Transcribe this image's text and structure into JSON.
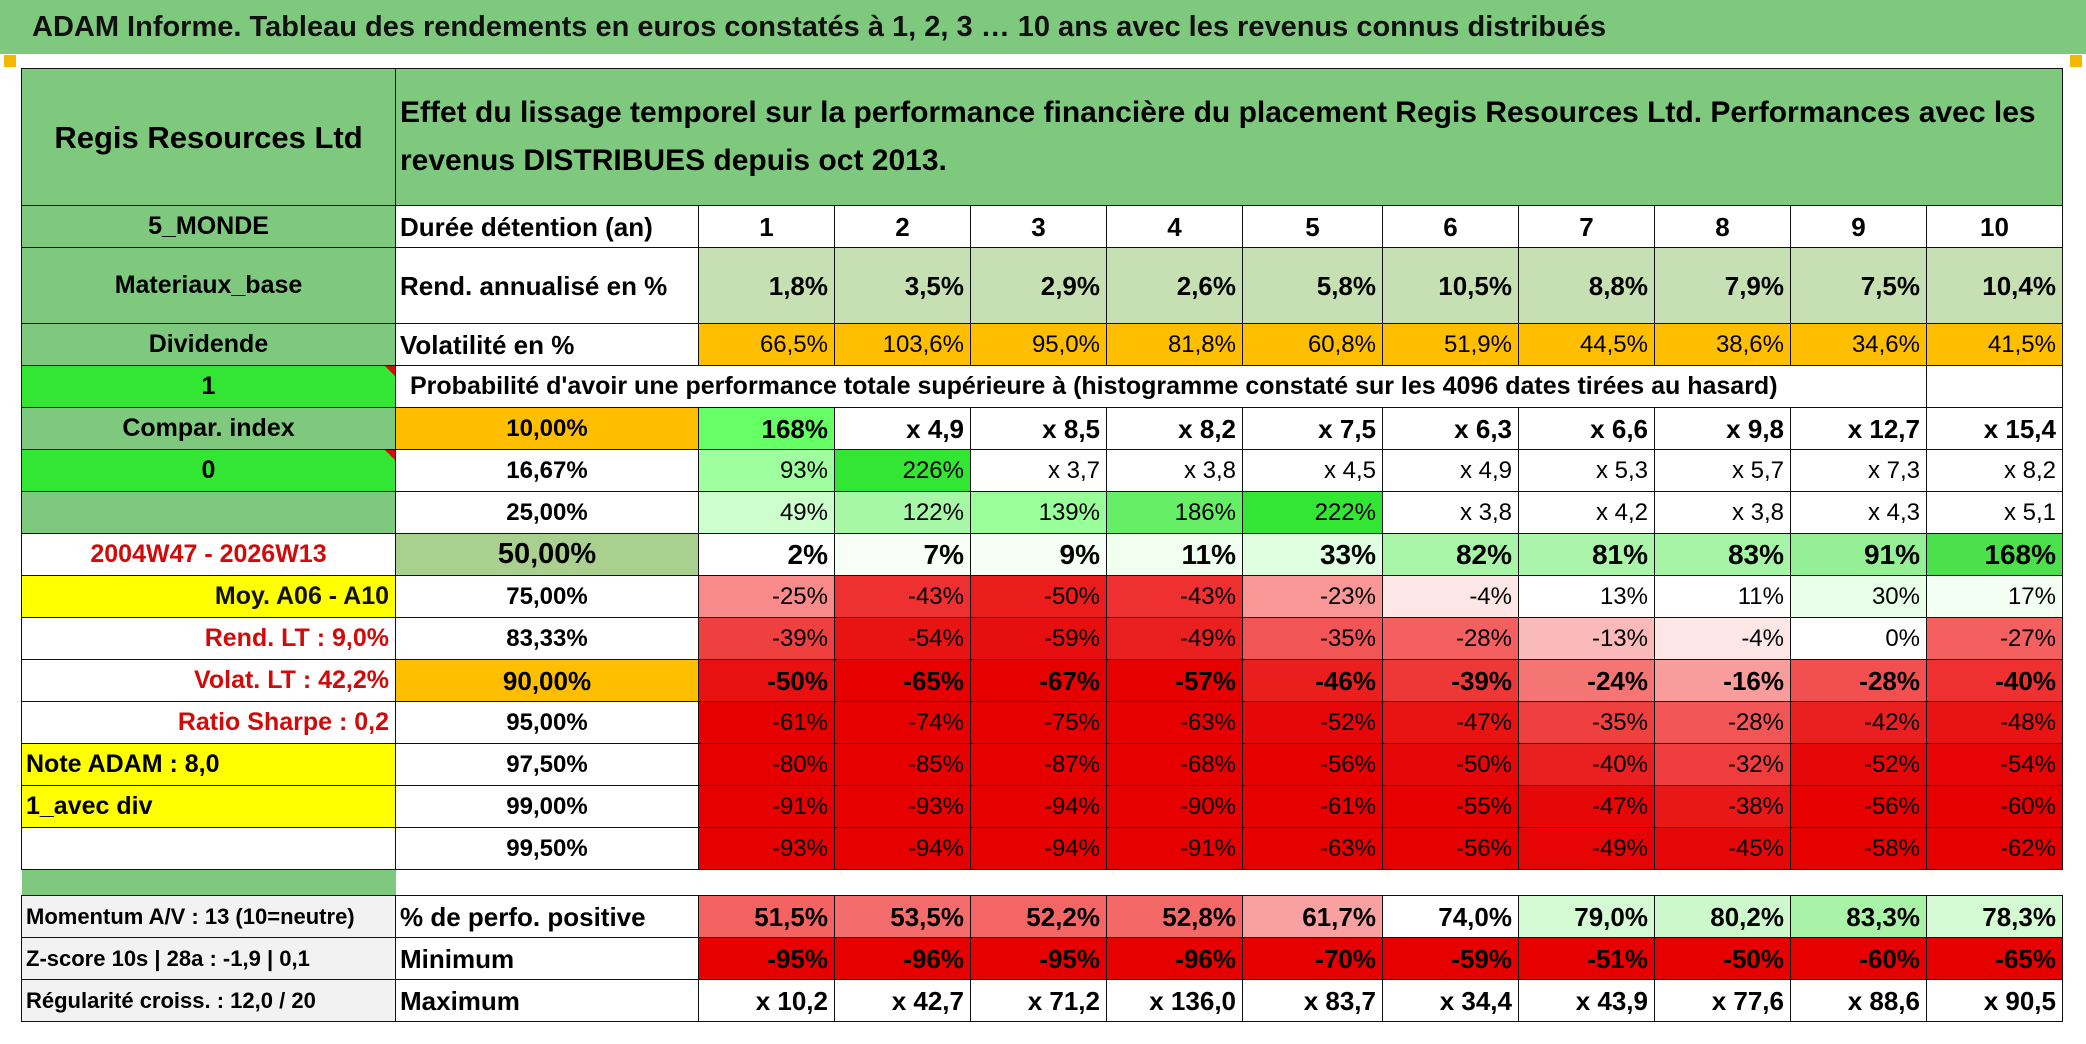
{
  "title": "ADAM Informe. Tableau des rendements en euros constatés à 1, 2, 3 … 10 ans avec les revenus connus distribués",
  "colors": {
    "green_header": "#7fc97f",
    "bright_green": "#33e633",
    "orange": "#ffbf00",
    "yellow": "#ffff00",
    "red_text": "#d10a0a"
  },
  "left_labels": {
    "name": "Regis Resources Ltd",
    "region": "5_MONDE",
    "sector": "Materiaux_base",
    "type": "Dividende",
    "flag1": "1",
    "compar": "Compar. index",
    "flag0": "0",
    "period": "2004W47 - 2026W13",
    "moy": "Moy. A06 - A10",
    "rend_lt": "Rend. LT :   9,0%",
    "volat_lt": "Volat. LT :   42,2%",
    "sharpe": "Ratio Sharpe :   0,2",
    "note": "Note ADAM : 8,0",
    "avec_div": "1_avec div",
    "momentum": "Momentum A/V : 13 (10=neutre)",
    "zscore": "Z-score 10s | 28a : -1,9 | 0,1",
    "regularite": "Régularité croiss. : 12,0 / 20"
  },
  "header_text": "Effet du lissage temporel sur la performance financière du placement Regis Resources Ltd. Performances avec les revenus DISTRIBUES depuis oct 2013.",
  "duree_label": "Durée détention (an)",
  "years": [
    "1",
    "2",
    "3",
    "4",
    "5",
    "6",
    "7",
    "8",
    "9",
    "10"
  ],
  "rend": {
    "label": "Rend. annualisé en %",
    "values": [
      "1,8%",
      "3,5%",
      "2,9%",
      "2,6%",
      "5,8%",
      "10,5%",
      "8,8%",
      "7,9%",
      "7,5%",
      "10,4%"
    ]
  },
  "volat": {
    "label": "Volatilité en %",
    "values": [
      "66,5%",
      "103,6%",
      "95,0%",
      "81,8%",
      "60,8%",
      "51,9%",
      "44,5%",
      "38,6%",
      "34,6%",
      "41,5%"
    ]
  },
  "prob_text": "Probabilité d'avoir une performance totale supérieure à (histogramme constaté sur les 4096 dates tirées au hasard)",
  "prob_rows": [
    {
      "pct": "10,00%",
      "values": [
        "168%",
        "x 4,9",
        "x 8,5",
        "x 8,2",
        "x 7,5",
        "x 6,3",
        "x 6,6",
        "x 9,8",
        "x 12,7",
        "x 15,4"
      ]
    },
    {
      "pct": "16,67%",
      "values": [
        "93%",
        "226%",
        "x 3,7",
        "x 3,8",
        "x 4,5",
        "x 4,9",
        "x 5,3",
        "x 5,7",
        "x 7,3",
        "x 8,2"
      ]
    },
    {
      "pct": "25,00%",
      "values": [
        "49%",
        "122%",
        "139%",
        "186%",
        "222%",
        "x 3,8",
        "x 4,2",
        "x 3,8",
        "x 4,3",
        "x 5,1"
      ]
    },
    {
      "pct": "50,00%",
      "values": [
        "2%",
        "7%",
        "9%",
        "11%",
        "33%",
        "82%",
        "81%",
        "83%",
        "91%",
        "168%"
      ]
    },
    {
      "pct": "75,00%",
      "values": [
        "-25%",
        "-43%",
        "-50%",
        "-43%",
        "-23%",
        "-4%",
        "13%",
        "11%",
        "30%",
        "17%"
      ]
    },
    {
      "pct": "83,33%",
      "values": [
        "-39%",
        "-54%",
        "-59%",
        "-49%",
        "-35%",
        "-28%",
        "-13%",
        "-4%",
        "0%",
        "-27%"
      ]
    },
    {
      "pct": "90,00%",
      "values": [
        "-50%",
        "-65%",
        "-67%",
        "-57%",
        "-46%",
        "-39%",
        "-24%",
        "-16%",
        "-28%",
        "-40%"
      ]
    },
    {
      "pct": "95,00%",
      "values": [
        "-61%",
        "-74%",
        "-75%",
        "-63%",
        "-52%",
        "-47%",
        "-35%",
        "-28%",
        "-42%",
        "-48%"
      ]
    },
    {
      "pct": "97,50%",
      "values": [
        "-80%",
        "-85%",
        "-87%",
        "-68%",
        "-56%",
        "-50%",
        "-40%",
        "-32%",
        "-52%",
        "-54%"
      ]
    },
    {
      "pct": "99,00%",
      "values": [
        "-91%",
        "-93%",
        "-94%",
        "-90%",
        "-61%",
        "-55%",
        "-47%",
        "-38%",
        "-56%",
        "-60%"
      ]
    },
    {
      "pct": "99,50%",
      "values": [
        "-93%",
        "-94%",
        "-94%",
        "-91%",
        "-63%",
        "-56%",
        "-49%",
        "-45%",
        "-58%",
        "-62%"
      ]
    }
  ],
  "positive": {
    "label": "% de perfo. positive",
    "values": [
      "51,5%",
      "53,5%",
      "52,2%",
      "52,8%",
      "61,7%",
      "74,0%",
      "79,0%",
      "80,2%",
      "83,3%",
      "78,3%"
    ]
  },
  "minimum": {
    "label": "Minimum",
    "values": [
      "-95%",
      "-96%",
      "-95%",
      "-96%",
      "-70%",
      "-59%",
      "-51%",
      "-50%",
      "-60%",
      "-65%"
    ]
  },
  "maximum": {
    "label": "Maximum",
    "values": [
      "x 10,2",
      "x 42,7",
      "x 71,2",
      "x 136,0",
      "x 83,7",
      "x 34,4",
      "x 43,9",
      "x 77,6",
      "x 88,6",
      "x 90,5"
    ]
  }
}
